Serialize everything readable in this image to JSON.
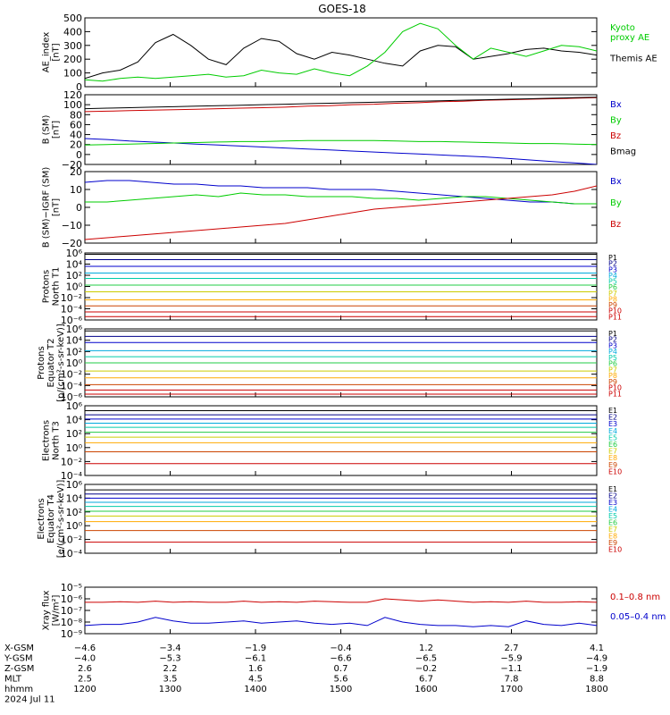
{
  "title": "GOES-18",
  "colors": {
    "black": "#000000",
    "green": "#00cc00",
    "blue": "#0000cc",
    "red": "#cc0000",
    "cyan": "#00aadd",
    "teal": "#00ccaa",
    "lightgreen": "#22cc44",
    "yellowgreen": "#cccc00",
    "orange": "#ffaa00",
    "brown": "#cc4400",
    "navy": "#000088"
  },
  "chart_data": [
    {
      "type": "line",
      "ylabel_lines": [
        "AE_index",
        "[nT]"
      ],
      "ylim": [
        0,
        500
      ],
      "yticks": [
        "0",
        "100",
        "200",
        "300",
        "400",
        "500"
      ],
      "series": [
        {
          "name": "Themis AE",
          "color": "#000000",
          "values": [
            60,
            100,
            120,
            180,
            320,
            380,
            300,
            200,
            160,
            280,
            350,
            330,
            240,
            200,
            250,
            230,
            200,
            170,
            150,
            260,
            300,
            290,
            200,
            220,
            240,
            270,
            280,
            260,
            250,
            230
          ]
        },
        {
          "name": "Kyoto proxy AE",
          "color": "#00cc00",
          "values": [
            50,
            40,
            60,
            70,
            60,
            70,
            80,
            90,
            70,
            80,
            120,
            100,
            90,
            130,
            100,
            80,
            150,
            250,
            400,
            460,
            420,
            300,
            200,
            280,
            250,
            220,
            260,
            300,
            290,
            260
          ]
        }
      ],
      "legend": [
        {
          "text": "Kyoto\nproxy AE",
          "color": "#00cc00"
        },
        {
          "text": "Themis AE",
          "color": "#000000"
        }
      ]
    },
    {
      "type": "line",
      "ylabel_lines": [
        "B (SM)",
        "[nT]"
      ],
      "ylim": [
        -20,
        120
      ],
      "yticks": [
        "−20",
        "0",
        "20",
        "40",
        "60",
        "80",
        "100",
        "120"
      ],
      "series": [
        {
          "name": "Bx",
          "color": "#0000cc",
          "values": [
            32,
            30,
            27,
            25,
            23,
            21,
            19,
            17,
            15,
            13,
            11,
            9,
            7,
            5,
            3,
            1,
            -1,
            -3,
            -5,
            -8,
            -11,
            -14,
            -17,
            -20
          ]
        },
        {
          "name": "By",
          "color": "#00cc00",
          "values": [
            19,
            20,
            21,
            22,
            23,
            24,
            25,
            26,
            26,
            27,
            28,
            28,
            28,
            28,
            27,
            26,
            26,
            25,
            24,
            23,
            22,
            22,
            21,
            20
          ]
        },
        {
          "name": "Bz",
          "color": "#cc0000",
          "values": [
            86,
            87,
            88,
            89,
            90,
            91,
            92,
            93,
            94,
            95,
            97,
            98,
            100,
            101,
            103,
            104,
            106,
            107,
            109,
            110,
            111,
            112,
            113,
            114
          ]
        },
        {
          "name": "Bmag",
          "color": "#000000",
          "values": [
            92,
            93,
            94,
            95,
            96,
            97,
            98,
            99,
            100,
            101,
            102,
            103,
            104,
            105,
            106,
            107,
            108,
            109,
            110,
            111,
            112,
            113,
            114,
            115
          ]
        }
      ],
      "legend": [
        {
          "text": "Bx",
          "color": "#0000cc"
        },
        {
          "text": "By",
          "color": "#00cc00"
        },
        {
          "text": "Bz",
          "color": "#cc0000"
        },
        {
          "text": "Bmag",
          "color": "#000000"
        }
      ]
    },
    {
      "type": "line",
      "ylabel_lines": [
        "B (SM)−IGRF (SM)",
        "[nT]"
      ],
      "ylim": [
        -20,
        20
      ],
      "yticks": [
        "−20",
        "−10",
        "0",
        "10",
        "20"
      ],
      "series": [
        {
          "name": "Bx",
          "color": "#0000cc",
          "values": [
            14,
            15,
            15,
            14,
            13,
            13,
            12,
            12,
            11,
            11,
            11,
            10,
            10,
            10,
            9,
            8,
            7,
            6,
            5,
            4,
            3,
            3,
            2,
            2
          ]
        },
        {
          "name": "By",
          "color": "#00cc00",
          "values": [
            3,
            3,
            4,
            5,
            6,
            7,
            6,
            8,
            7,
            7,
            6,
            6,
            6,
            5,
            5,
            4,
            5,
            6,
            6,
            5,
            4,
            3,
            2,
            2
          ]
        },
        {
          "name": "Bz",
          "color": "#cc0000",
          "values": [
            -18,
            -17,
            -16,
            -15,
            -14,
            -13,
            -12,
            -11,
            -10,
            -9,
            -7,
            -5,
            -3,
            -1,
            0,
            1,
            2,
            3,
            4,
            5,
            6,
            7,
            9,
            12
          ]
        }
      ],
      "legend": [
        {
          "text": "Bx",
          "color": "#0000cc"
        },
        {
          "text": "By",
          "color": "#00cc00"
        },
        {
          "text": "Bz",
          "color": "#cc0000"
        }
      ]
    },
    {
      "type": "line",
      "scale": "log",
      "ylabel_lines": [
        "Protons",
        "North T1"
      ],
      "ylim": [
        1e-06,
        10000.0
      ],
      "yticks": [
        "10⁶",
        "10⁴",
        "10²",
        "10⁰",
        "10⁻²",
        "10⁻⁴",
        "10⁻⁶"
      ],
      "channels": [
        "P1",
        "P2",
        "P3",
        "P4",
        "P5",
        "P6",
        "P7",
        "P8",
        "P9",
        "P10",
        "P11"
      ],
      "channel_colors": [
        "#000000",
        "#000088",
        "#0000cc",
        "#00aadd",
        "#00ccaa",
        "#22cc44",
        "#cccc00",
        "#ffaa00",
        "#cc4400",
        "#cc0000",
        "#cc0000"
      ],
      "levels_log10": [
        3.8,
        3.0,
        2.0,
        1.0,
        0.2,
        -0.8,
        -1.8,
        -3.0,
        -3.9,
        -4.8,
        -5.5
      ]
    },
    {
      "type": "line",
      "scale": "log",
      "ylabel_lines": [
        "Protons",
        "Equator T2",
        "[p/(cm²-s-sr-keV)]"
      ],
      "ylim": [
        1e-06,
        10000.0
      ],
      "yticks": [
        "10⁶",
        "10⁴",
        "10²",
        "10⁰",
        "10⁻²",
        "10⁻⁴",
        "10⁻⁶"
      ],
      "channels": [
        "P1",
        "P2",
        "P3",
        "P4",
        "P5",
        "P6",
        "P7",
        "P8",
        "P9",
        "P10",
        "P11"
      ],
      "channel_colors": [
        "#000000",
        "#000088",
        "#0000cc",
        "#00aadd",
        "#00ccaa",
        "#22cc44",
        "#cccc00",
        "#ffaa00",
        "#cc4400",
        "#cc0000",
        "#cc0000"
      ],
      "levels_log10": [
        3.7,
        2.9,
        2.0,
        0.8,
        -0.1,
        -1.0,
        -2.2,
        -3.2,
        -4.2,
        -5.0,
        -5.6
      ]
    },
    {
      "type": "line",
      "scale": "log",
      "ylabel_lines": [
        "Electrons",
        "North T3"
      ],
      "ylim": [
        0.0001,
        1000000.0
      ],
      "yticks": [
        "10⁶",
        "10⁴",
        "10²",
        "10⁰",
        "10⁻²",
        "10⁻⁴"
      ],
      "channels": [
        "E1",
        "E2",
        "E3",
        "E4",
        "E5",
        "E6",
        "E7",
        "E8",
        "E9",
        "E10"
      ],
      "channel_colors": [
        "#000000",
        "#000088",
        "#0000cc",
        "#00aadd",
        "#00ccaa",
        "#22cc44",
        "#cccc00",
        "#ffaa00",
        "#cc4400",
        "#cc0000"
      ],
      "levels_log10": [
        5.3,
        4.7,
        4.1,
        3.5,
        2.9,
        2.2,
        1.5,
        0.7,
        -0.6,
        -2.3
      ]
    },
    {
      "type": "line",
      "scale": "log",
      "ylabel_lines": [
        "Electrons",
        "Equator T4",
        "[e/(cm²-s-sr-keV)]"
      ],
      "ylim": [
        0.0001,
        1000000.0
      ],
      "yticks": [
        "10⁶",
        "10⁴",
        "10²",
        "10⁰",
        "10⁻²",
        "10⁻⁴"
      ],
      "channels": [
        "E1",
        "E2",
        "E3",
        "E4",
        "E5",
        "E6",
        "E7",
        "E8",
        "E9",
        "E10"
      ],
      "channel_colors": [
        "#000000",
        "#000088",
        "#0000cc",
        "#00aadd",
        "#00ccaa",
        "#22cc44",
        "#cccc00",
        "#ffaa00",
        "#cc4400",
        "#cc0000"
      ],
      "levels_log10": [
        5.2,
        4.6,
        4.0,
        3.4,
        2.8,
        2.1,
        1.4,
        0.6,
        -0.7,
        -2.4
      ]
    },
    {
      "type": "line",
      "scale": "log",
      "ylabel_lines": [
        "Xray flux",
        "[W/m²]"
      ],
      "ylim": [
        1e-09,
        1e-05
      ],
      "yticks": [
        "10⁻⁵",
        "10⁻⁶",
        "10⁻⁷",
        "10⁻⁸",
        "10⁻⁹"
      ],
      "series": [
        {
          "name": "0.1–0.8 nm",
          "color": "#cc0000",
          "values_log10": [
            -6.3,
            -6.3,
            -6.25,
            -6.3,
            -6.2,
            -6.3,
            -6.25,
            -6.3,
            -6.3,
            -6.2,
            -6.3,
            -6.25,
            -6.3,
            -6.2,
            -6.25,
            -6.3,
            -6.3,
            -6.0,
            -6.1,
            -6.2,
            -6.1,
            -6.2,
            -6.3,
            -6.25,
            -6.3,
            -6.2,
            -6.3,
            -6.3,
            -6.25,
            -6.3
          ]
        },
        {
          "name": "0.05–0.4 nm",
          "color": "#0000cc",
          "values_log10": [
            -8.3,
            -8.2,
            -8.2,
            -8.0,
            -7.6,
            -7.9,
            -8.1,
            -8.1,
            -8.0,
            -7.9,
            -8.1,
            -8.0,
            -7.9,
            -8.1,
            -8.2,
            -8.1,
            -8.3,
            -7.6,
            -8.0,
            -8.2,
            -8.3,
            -8.3,
            -8.4,
            -8.3,
            -8.4,
            -7.9,
            -8.2,
            -8.3,
            -8.1,
            -8.3
          ]
        }
      ],
      "legend": [
        {
          "text": "0.1–0.8 nm",
          "color": "#cc0000"
        },
        {
          "text": "0.05–0.4 nm",
          "color": "#0000cc"
        }
      ]
    }
  ],
  "x_axis": {
    "rows": [
      {
        "label": "X-GSM",
        "values": [
          "−4.6",
          "−3.4",
          "−1.9",
          "−0.4",
          "1.2",
          "2.7",
          "4.1"
        ]
      },
      {
        "label": "Y-GSM",
        "values": [
          "−4.0",
          "−5.3",
          "−6.1",
          "−6.6",
          "−6.5",
          "−5.9",
          "−4.9"
        ]
      },
      {
        "label": "Z-GSM",
        "values": [
          "2.6",
          "2.2",
          "1.6",
          "0.7",
          "−0.2",
          "−1.1",
          "−1.9"
        ]
      },
      {
        "label": "MLT",
        "values": [
          "2.5",
          "3.5",
          "4.5",
          "5.6",
          "6.7",
          "7.8",
          "8.8"
        ]
      },
      {
        "label": "hhmm",
        "values": [
          "1200",
          "1300",
          "1400",
          "1500",
          "1600",
          "1700",
          "1800"
        ]
      }
    ],
    "date": "2024 Jul 11"
  }
}
